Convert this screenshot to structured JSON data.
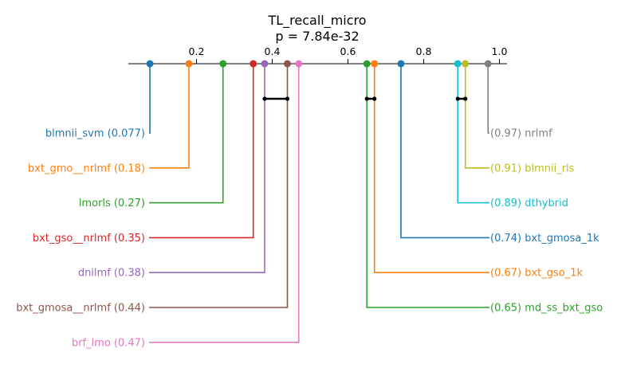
{
  "chart_data": {
    "type": "critical-difference",
    "title": "TL_recall_micro",
    "subtitle": "p = 7.84e-32",
    "axis": {
      "range": [
        0.02,
        1.02
      ],
      "ticks": [
        0.2,
        0.4,
        0.6,
        0.8,
        1.0
      ],
      "tick_labels": [
        "0.2",
        "0.4",
        "0.6",
        "0.8",
        "1.0"
      ]
    },
    "series": [
      {
        "name": "blmnii_svm",
        "value": 0.077,
        "label": "blmnii_svm (0.077)",
        "side": "left",
        "color": "#1f77b4"
      },
      {
        "name": "bxt_gmo__nrlmf",
        "value": 0.18,
        "label": "bxt_gmo__nrlmf (0.18)",
        "side": "left",
        "color": "#ff7f0e"
      },
      {
        "name": "lmorls",
        "value": 0.27,
        "label": "lmorls (0.27)",
        "side": "left",
        "color": "#2ca02c"
      },
      {
        "name": "bxt_gso__nrlmf",
        "value": 0.35,
        "label": "bxt_gso__nrlmf (0.35)",
        "side": "left",
        "color": "#d62728"
      },
      {
        "name": "dnilmf",
        "value": 0.38,
        "label": "dnilmf (0.38)",
        "side": "left",
        "color": "#9467bd"
      },
      {
        "name": "bxt_gmosa__nrlmf",
        "value": 0.44,
        "label": "bxt_gmosa__nrlmf (0.44)",
        "side": "left",
        "color": "#8c564b"
      },
      {
        "name": "brf_lmo",
        "value": 0.47,
        "label": "brf_lmo (0.47)",
        "side": "left",
        "color": "#e377c2"
      },
      {
        "name": "md_ss_bxt_gso",
        "value": 0.65,
        "label": "(0.65) md_ss_bxt_gso",
        "side": "right",
        "color": "#2ca02c"
      },
      {
        "name": "bxt_gso_1k",
        "value": 0.67,
        "label": "(0.67) bxt_gso_1k",
        "side": "right",
        "color": "#ff7f0e"
      },
      {
        "name": "bxt_gmosa_1k",
        "value": 0.74,
        "label": "(0.74) bxt_gmosa_1k",
        "side": "right",
        "color": "#1f77b4"
      },
      {
        "name": "dthybrid",
        "value": 0.89,
        "label": "(0.89) dthybrid",
        "side": "right",
        "color": "#17becf"
      },
      {
        "name": "blmnii_rls",
        "value": 0.91,
        "label": "(0.91) blmnii_rls",
        "side": "right",
        "color": "#bcbd22"
      },
      {
        "name": "nrlmf",
        "value": 0.97,
        "label": "(0.97) nrlmf",
        "side": "right",
        "color": "#7f7f7f"
      }
    ],
    "cliques": [
      {
        "from": 0.38,
        "to": 0.44
      },
      {
        "from": 0.65,
        "to": 0.67
      },
      {
        "from": 0.89,
        "to": 0.91
      }
    ]
  }
}
